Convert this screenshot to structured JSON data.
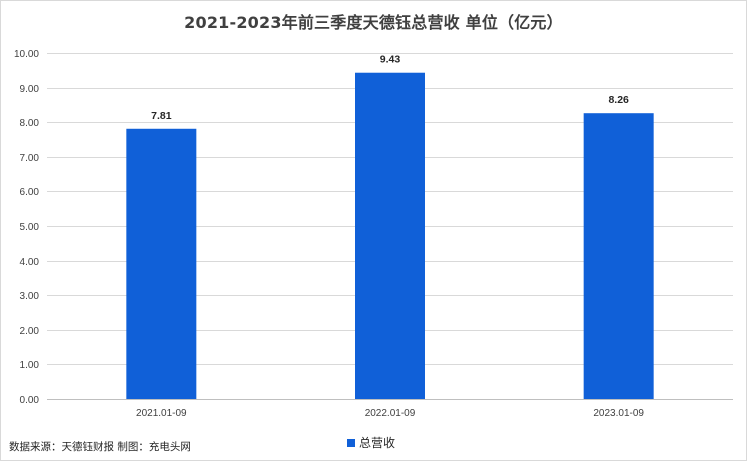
{
  "source_note": "数据来源：天德钰财报 制图：充电头网",
  "colors": {
    "bar": "#1060D8",
    "grid": "#d9d9d9",
    "axis": "#bfbfbf"
  },
  "chart_data": {
    "type": "bar",
    "title": "2021-2023年前三季度天德钰总营收  单位（亿元）",
    "categories": [
      "2021.01-09",
      "2022.01-09",
      "2023.01-09"
    ],
    "series": [
      {
        "name": "总营收",
        "values": [
          7.81,
          9.43,
          8.26
        ],
        "labels": [
          "7.81",
          "9.43",
          "8.26"
        ]
      }
    ],
    "ylim": [
      0,
      10
    ],
    "yticks": [
      "0.00",
      "1.00",
      "2.00",
      "3.00",
      "4.00",
      "5.00",
      "6.00",
      "7.00",
      "8.00",
      "9.00",
      "10.00"
    ],
    "xlabel": "",
    "ylabel": "",
    "grid": true,
    "legend_position": "bottom"
  }
}
